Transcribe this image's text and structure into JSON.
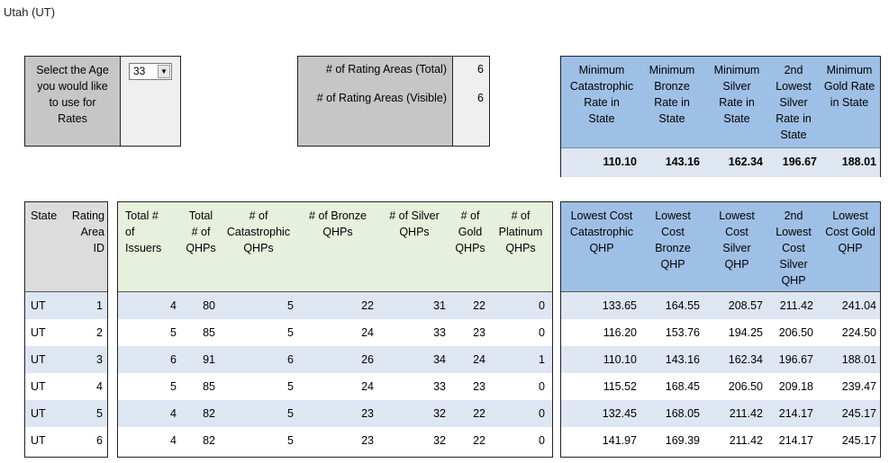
{
  "page": {
    "title": "Utah (UT)"
  },
  "age_selector": {
    "label_lines": [
      "Select the Age",
      "you would like",
      "to use for",
      "Rates"
    ],
    "value": "33"
  },
  "rating_areas": {
    "total_label": "# of Rating Areas (Total)",
    "total_value": "6",
    "visible_label": "# of Rating Areas (Visible)",
    "visible_value": "6"
  },
  "min_rates": {
    "headers": [
      [
        "Minimum",
        "Catastrophic",
        "Rate in",
        "State"
      ],
      [
        "Minimum",
        "Bronze",
        "Rate in",
        "State"
      ],
      [
        "Minimum",
        "Silver",
        "Rate in",
        "State"
      ],
      [
        "2nd",
        "Lowest",
        "Silver",
        "Rate in",
        "State"
      ],
      [
        "Minimum",
        "Gold Rate",
        "in State"
      ]
    ],
    "values": [
      "110.10",
      "143.16",
      "162.34",
      "196.67",
      "188.01"
    ]
  },
  "table_left": {
    "headers": [
      [
        "State"
      ],
      [
        "Rating",
        "Area",
        "ID"
      ]
    ]
  },
  "table_mid": {
    "headers": [
      [
        "Total #",
        "of",
        "Issuers"
      ],
      [
        "Total",
        "# of",
        "QHPs"
      ],
      [
        "# of",
        "Catastrophic",
        "QHPs"
      ],
      [
        "# of Bronze",
        "QHPs"
      ],
      [
        "# of Silver",
        "QHPs"
      ],
      [
        "# of",
        "Gold",
        "QHPs"
      ],
      [
        "# of",
        "Platinum",
        "QHPs"
      ]
    ]
  },
  "table_right": {
    "headers": [
      [
        "Lowest Cost",
        "Catastrophic",
        "QHP"
      ],
      [
        "Lowest",
        "Cost",
        "Bronze",
        "QHP"
      ],
      [
        "Lowest",
        "Cost",
        "Silver",
        "QHP"
      ],
      [
        "2nd",
        "Lowest",
        "Cost",
        "Silver",
        "QHP"
      ],
      [
        "Lowest",
        "Cost Gold",
        "QHP"
      ]
    ]
  },
  "rows": [
    {
      "state": "UT",
      "area": "1",
      "issuers": "4",
      "qhps": "80",
      "cat": "5",
      "bronze": "22",
      "silver": "31",
      "gold": "22",
      "plat": "0",
      "lc_cat": "133.65",
      "lc_bronze": "164.55",
      "lc_silver": "208.57",
      "lc_2silver": "211.42",
      "lc_gold": "241.04"
    },
    {
      "state": "UT",
      "area": "2",
      "issuers": "5",
      "qhps": "85",
      "cat": "5",
      "bronze": "24",
      "silver": "33",
      "gold": "23",
      "plat": "0",
      "lc_cat": "116.20",
      "lc_bronze": "153.76",
      "lc_silver": "194.25",
      "lc_2silver": "206.50",
      "lc_gold": "224.50"
    },
    {
      "state": "UT",
      "area": "3",
      "issuers": "6",
      "qhps": "91",
      "cat": "6",
      "bronze": "26",
      "silver": "34",
      "gold": "24",
      "plat": "1",
      "lc_cat": "110.10",
      "lc_bronze": "143.16",
      "lc_silver": "162.34",
      "lc_2silver": "196.67",
      "lc_gold": "188.01"
    },
    {
      "state": "UT",
      "area": "4",
      "issuers": "5",
      "qhps": "85",
      "cat": "5",
      "bronze": "24",
      "silver": "33",
      "gold": "23",
      "plat": "0",
      "lc_cat": "115.52",
      "lc_bronze": "168.45",
      "lc_silver": "206.50",
      "lc_2silver": "209.18",
      "lc_gold": "239.47"
    },
    {
      "state": "UT",
      "area": "5",
      "issuers": "4",
      "qhps": "82",
      "cat": "5",
      "bronze": "23",
      "silver": "32",
      "gold": "22",
      "plat": "0",
      "lc_cat": "132.45",
      "lc_bronze": "168.05",
      "lc_silver": "211.42",
      "lc_2silver": "214.17",
      "lc_gold": "245.17"
    },
    {
      "state": "UT",
      "area": "6",
      "issuers": "4",
      "qhps": "82",
      "cat": "5",
      "bronze": "23",
      "silver": "32",
      "gold": "22",
      "plat": "0",
      "lc_cat": "141.97",
      "lc_bronze": "169.39",
      "lc_silver": "211.42",
      "lc_2silver": "214.17",
      "lc_gold": "245.17"
    }
  ]
}
